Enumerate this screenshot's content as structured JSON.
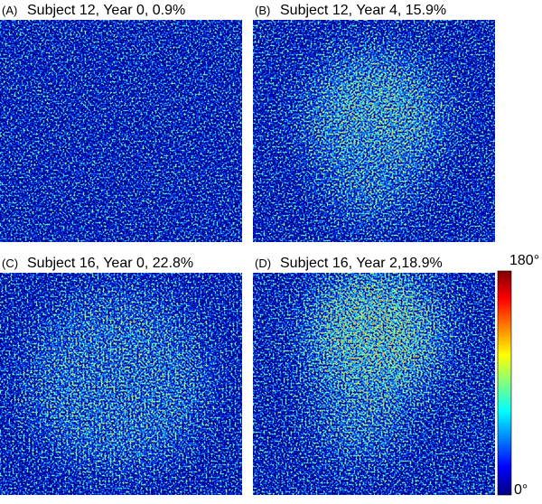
{
  "panels": [
    {
      "label": "(A)",
      "title": "Subject 12, Year 0, 0.9%"
    },
    {
      "label": "(B)",
      "title": "Subject 12, Year 4, 15.9%"
    },
    {
      "label": "(C)",
      "title": "Subject 16, Year 0, 22.8%"
    },
    {
      "label": "(D)",
      "title": "Subject 16, Year 2,18.9%"
    }
  ],
  "colorbar": {
    "max_label": "180°",
    "min_label": "0°"
  }
}
